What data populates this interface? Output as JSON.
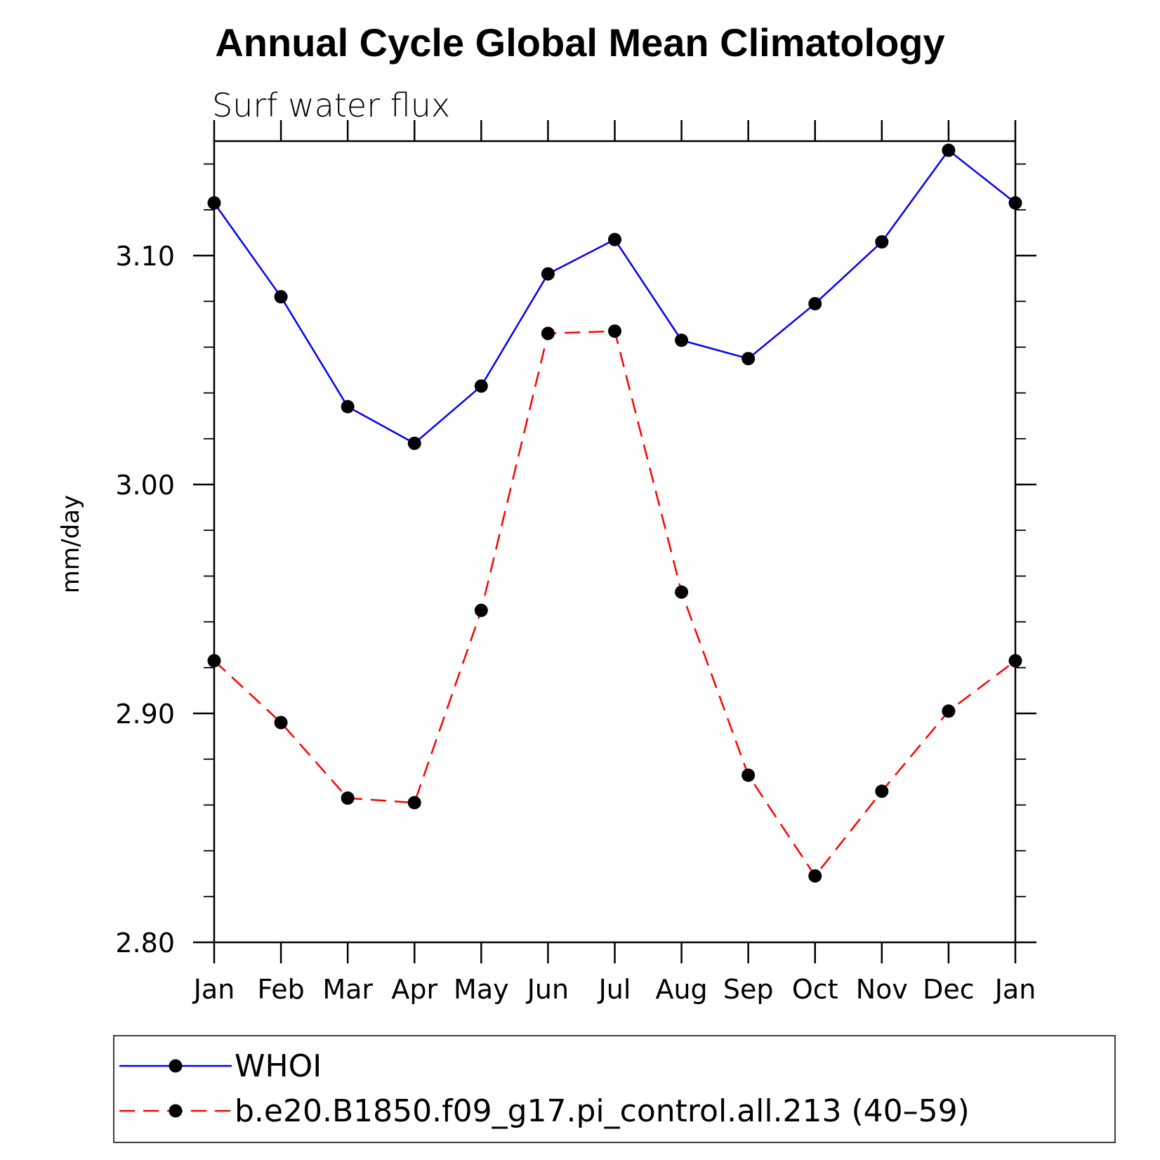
{
  "chart_data": {
    "type": "line",
    "title": "Annual Cycle Global Mean Climatology",
    "subtitle": "Surf water flux",
    "ylabel": "mm/day",
    "xlabel": "",
    "categories": [
      "Jan",
      "Feb",
      "Mar",
      "Apr",
      "May",
      "Jun",
      "Jul",
      "Aug",
      "Sep",
      "Oct",
      "Nov",
      "Dec",
      "Jan"
    ],
    "ylim": [
      2.8,
      3.15
    ],
    "yticks": [
      "2.80",
      "2.90",
      "3.00",
      "3.10"
    ],
    "ytick_values": [
      2.8,
      2.9,
      3.0,
      3.1
    ],
    "grid": false,
    "legend_position": "bottom",
    "series": [
      {
        "name": "WHOI",
        "color": "#0000ff",
        "line_style": "solid",
        "marker": "filled-circle",
        "values": [
          3.123,
          3.082,
          3.034,
          3.018,
          3.043,
          3.092,
          3.107,
          3.063,
          3.055,
          3.079,
          3.106,
          3.146,
          3.123
        ]
      },
      {
        "name": "b.e20.B1850.f09_g17.pi_control.all.213 (40–59)",
        "color": "#ff0000",
        "line_style": "dashed",
        "marker": "filled-circle",
        "values": [
          2.923,
          2.896,
          2.863,
          2.861,
          2.945,
          3.066,
          3.067,
          2.953,
          2.873,
          2.829,
          2.866,
          2.901,
          2.923
        ]
      }
    ]
  }
}
